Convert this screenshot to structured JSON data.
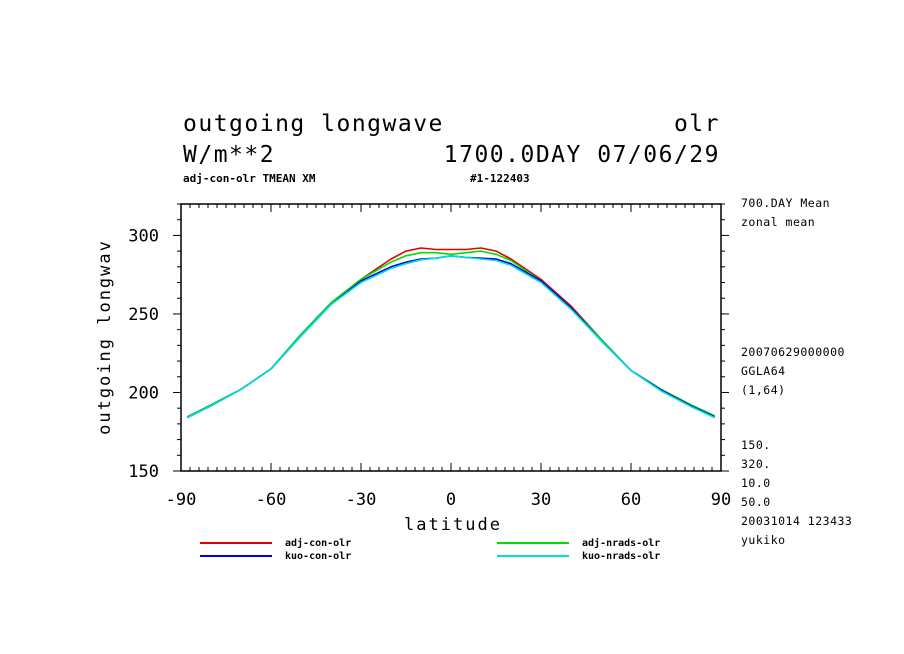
{
  "header": {
    "title_left": "outgoing longwave",
    "title_right": "olr",
    "units": "W/m**2",
    "time_label": "1700.0DAY 07/06/29",
    "subtitle_left": "adj-con-olr TMEAN XM",
    "subtitle_center": "#1-122403"
  },
  "side_info": {
    "lines_top": [
      "700.DAY Mean",
      "zonal mean"
    ],
    "lines_mid": [
      "20070629000000",
      "GGLA64",
      "(1,64)"
    ],
    "lines_bottom": [
      "150.",
      "320.",
      "10.0",
      "50.0",
      "20031014 123433",
      "yukiko"
    ]
  },
  "chart_data": {
    "type": "line",
    "title": "outgoing longwave",
    "xlabel": "latitude",
    "ylabel": "outgoing longwav",
    "xlim": [
      -90,
      90
    ],
    "ylim": [
      150,
      320
    ],
    "xticks": [
      -90,
      -60,
      -30,
      0,
      30,
      60,
      90
    ],
    "xtick_labels": [
      "-90",
      "-60",
      "-30",
      "0",
      "30",
      "60",
      "90"
    ],
    "yticks": [
      150,
      200,
      250,
      300
    ],
    "ytick_labels": [
      "150",
      "200",
      "250",
      "300"
    ],
    "x": [
      -87.9,
      -80,
      -70,
      -60,
      -50,
      -40,
      -30,
      -20,
      -15,
      -10,
      -5,
      0,
      5,
      10,
      15,
      20,
      30,
      40,
      50,
      60,
      70,
      80,
      87.9
    ],
    "series": [
      {
        "name": "adj-con-olr",
        "color": "#e00000",
        "values": [
          184.5,
          192,
          202,
          215,
          237,
          257,
          272,
          285,
          290,
          292,
          291,
          291,
          291,
          292,
          290,
          285,
          272,
          255,
          234,
          214,
          202,
          192,
          185
        ]
      },
      {
        "name": "adj-nrads-olr",
        "color": "#00e000",
        "values": [
          184.5,
          192,
          202,
          215,
          237,
          257,
          272,
          283,
          287,
          289,
          289,
          288,
          289,
          290,
          288,
          284,
          271,
          254,
          234,
          214,
          202,
          192,
          185
        ]
      },
      {
        "name": "kuo-con-olr",
        "color": "#0000e0",
        "values": [
          184,
          191.5,
          202,
          215,
          236,
          256,
          271,
          280,
          283,
          285,
          285.5,
          287,
          286,
          285.5,
          285,
          282,
          271,
          254,
          233,
          214,
          201.5,
          191.5,
          184.5
        ]
      },
      {
        "name": "kuo-nrads-olr",
        "color": "#00e0e0",
        "values": [
          184,
          191.5,
          202,
          215,
          236,
          256,
          270,
          279,
          282,
          284.5,
          285.5,
          287,
          286,
          285,
          284,
          281,
          270,
          253,
          233,
          214,
          201,
          191,
          184
        ]
      }
    ],
    "legend": "bottom"
  }
}
